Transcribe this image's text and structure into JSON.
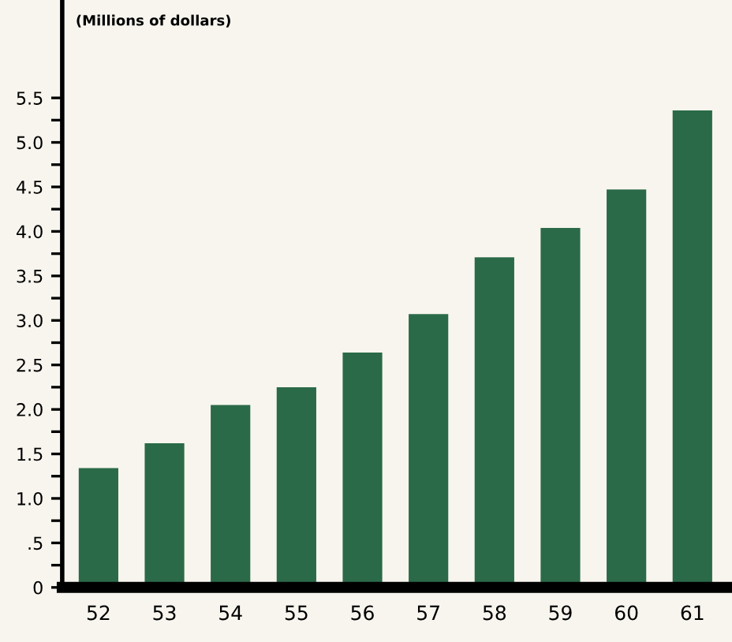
{
  "chart_data": {
    "type": "bar",
    "ylabel": "(Millions of dollars)",
    "categories": [
      "52",
      "53",
      "54",
      "55",
      "56",
      "57",
      "58",
      "59",
      "60",
      "61"
    ],
    "values": [
      1.34,
      1.62,
      2.05,
      2.25,
      2.64,
      3.07,
      3.71,
      4.04,
      4.47,
      5.36
    ],
    "color": "#2b6a48",
    "ylim": [
      0,
      6.6
    ],
    "yticks": [
      0,
      {
        "value": 0.25,
        "label": null
      },
      {
        "value": 0.5,
        "label": ".5"
      },
      {
        "value": 0.75,
        "label": null
      },
      {
        "value": 1,
        "label": "1.0"
      },
      {
        "value": 1.25,
        "label": null
      },
      1.5,
      {
        "value": 1.75,
        "label": null
      },
      {
        "value": 2,
        "label": "2.0"
      },
      {
        "value": 2.25,
        "label": null
      },
      2.5,
      {
        "value": 2.75,
        "label": null
      },
      {
        "value": 3,
        "label": "3.0"
      },
      {
        "value": 3.25,
        "label": null
      },
      3.5,
      {
        "value": 3.75,
        "label": null
      },
      {
        "value": 4,
        "label": "4.0"
      },
      {
        "value": 4.25,
        "label": null
      },
      4.5,
      {
        "value": 4.75,
        "label": null
      },
      {
        "value": 5,
        "label": "5.0"
      },
      {
        "value": 5.25,
        "label": null
      },
      5.5
    ],
    "grid": false
  }
}
